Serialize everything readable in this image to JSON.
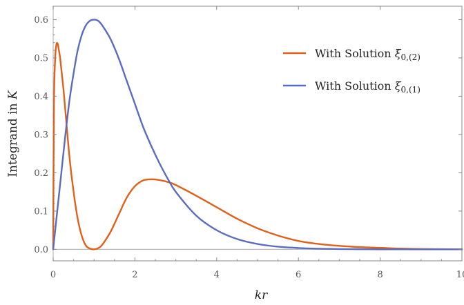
{
  "chart_data": {
    "type": "line",
    "xlabel": "kr",
    "ylabel_prefix": "Integrand in ",
    "ylabel_symbol": "K",
    "xlim": [
      0,
      10
    ],
    "ylim": [
      -0.03,
      0.635
    ],
    "xticks": [
      0,
      2,
      4,
      6,
      8,
      10
    ],
    "xtick_labels": [
      "0",
      "2",
      "4",
      "6",
      "8",
      "10"
    ],
    "yticks": [
      0.0,
      0.1,
      0.2,
      0.3,
      0.4,
      0.5,
      0.6
    ],
    "ytick_labels": [
      "0.0",
      "0.1",
      "0.2",
      "0.3",
      "0.4",
      "0.5",
      "0.6"
    ],
    "grid": false,
    "legend_position": "top-right",
    "series": [
      {
        "legend_text": "With Solution ",
        "legend_symbol": "ξ",
        "legend_sub": "0,(2)",
        "color": "#e0601a",
        "x": [
          0,
          0.02,
          0.05,
          0.08,
          0.11,
          0.14,
          0.17,
          0.2,
          0.25,
          0.3,
          0.4,
          0.5,
          0.6,
          0.7,
          0.8,
          0.9,
          1.0,
          1.1,
          1.2,
          1.4,
          1.6,
          1.8,
          2.0,
          2.2,
          2.4,
          2.6,
          2.8,
          3.0,
          3.5,
          4.0,
          4.5,
          5.0,
          5.5,
          6.0,
          6.5,
          7.0,
          7.5,
          8.0,
          8.5,
          9.0,
          9.5,
          10.0
        ],
        "y": [
          0,
          0.38,
          0.5,
          0.535,
          0.537,
          0.52,
          0.5,
          0.47,
          0.42,
          0.36,
          0.24,
          0.15,
          0.08,
          0.035,
          0.01,
          0.002,
          0.0,
          0.003,
          0.012,
          0.045,
          0.09,
          0.135,
          0.165,
          0.18,
          0.183,
          0.181,
          0.176,
          0.168,
          0.14,
          0.11,
          0.08,
          0.055,
          0.036,
          0.022,
          0.014,
          0.009,
          0.006,
          0.004,
          0.002,
          0.001,
          0.0005,
          0.0002
        ]
      },
      {
        "legend_text": "With Solution ",
        "legend_symbol": "ξ",
        "legend_sub": "0,(1)",
        "color": "#5a6bc2",
        "x": [
          0,
          0.1,
          0.2,
          0.3,
          0.4,
          0.5,
          0.6,
          0.7,
          0.8,
          0.9,
          1.0,
          1.1,
          1.2,
          1.4,
          1.6,
          1.8,
          2.0,
          2.2,
          2.4,
          2.6,
          2.8,
          3.0,
          3.5,
          4.0,
          4.5,
          5.0,
          5.5,
          6.0,
          6.5,
          7.0,
          7.5,
          8.0,
          9.0,
          10.0
        ],
        "y": [
          0,
          0.1,
          0.2,
          0.3,
          0.39,
          0.46,
          0.52,
          0.56,
          0.585,
          0.597,
          0.6,
          0.597,
          0.585,
          0.55,
          0.5,
          0.44,
          0.38,
          0.32,
          0.27,
          0.225,
          0.185,
          0.15,
          0.088,
          0.05,
          0.027,
          0.014,
          0.007,
          0.0035,
          0.0017,
          0.0008,
          0.0004,
          0.0002,
          5e-05,
          1e-05
        ]
      }
    ]
  }
}
